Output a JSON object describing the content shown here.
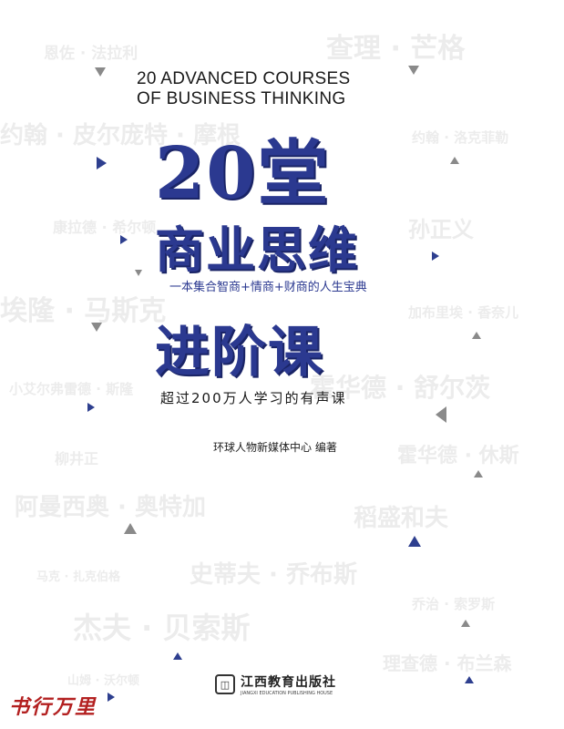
{
  "background_names": [
    "恩佐 · 法拉利",
    "查理 · 芒格",
    "约翰 · 皮尔庞特 · 摩根",
    "约翰 · 洛克菲勒",
    "康拉德 · 希尔顿",
    "孙正义",
    "埃隆 · 马斯克",
    "加布里埃 · 香奈儿",
    "小艾尔弗雷德 · 斯隆",
    "霍华德 · 舒尔茨",
    "柳井正",
    "霍华德 · 休斯",
    "阿曼西奥 · 奥特加",
    "稻盛和夫",
    "马克 · 扎克伯格",
    "史蒂夫 · 乔布斯",
    "乔治 · 索罗斯",
    "杰夫 · 贝索斯",
    "理查德 · 布兰森",
    "山姆 · 沃尔顿"
  ],
  "title_en": [
    "20 ADVANCED COURSES",
    "OF BUSINESS THINKING"
  ],
  "title_cn": [
    "20堂",
    "商业思维",
    "进阶课"
  ],
  "tagline": "一本集合智商+情商+财商的人生宝典",
  "subtitle": "超过200万人学习的有声课",
  "author": "环球人物新媒体中心  编著",
  "publisher": {
    "name_cn": "江西教育出版社",
    "name_en": "JIANGXI EDUCATION PUBLISHING HOUSE",
    "icon": "publisher-logo-icon"
  },
  "watermark": "书行万里",
  "colors": {
    "title_blue": "#2b3990",
    "triangle_gray": "#8a8a8a",
    "triangle_blue": "#2e3f8f",
    "watermark_red": "#b32020"
  }
}
